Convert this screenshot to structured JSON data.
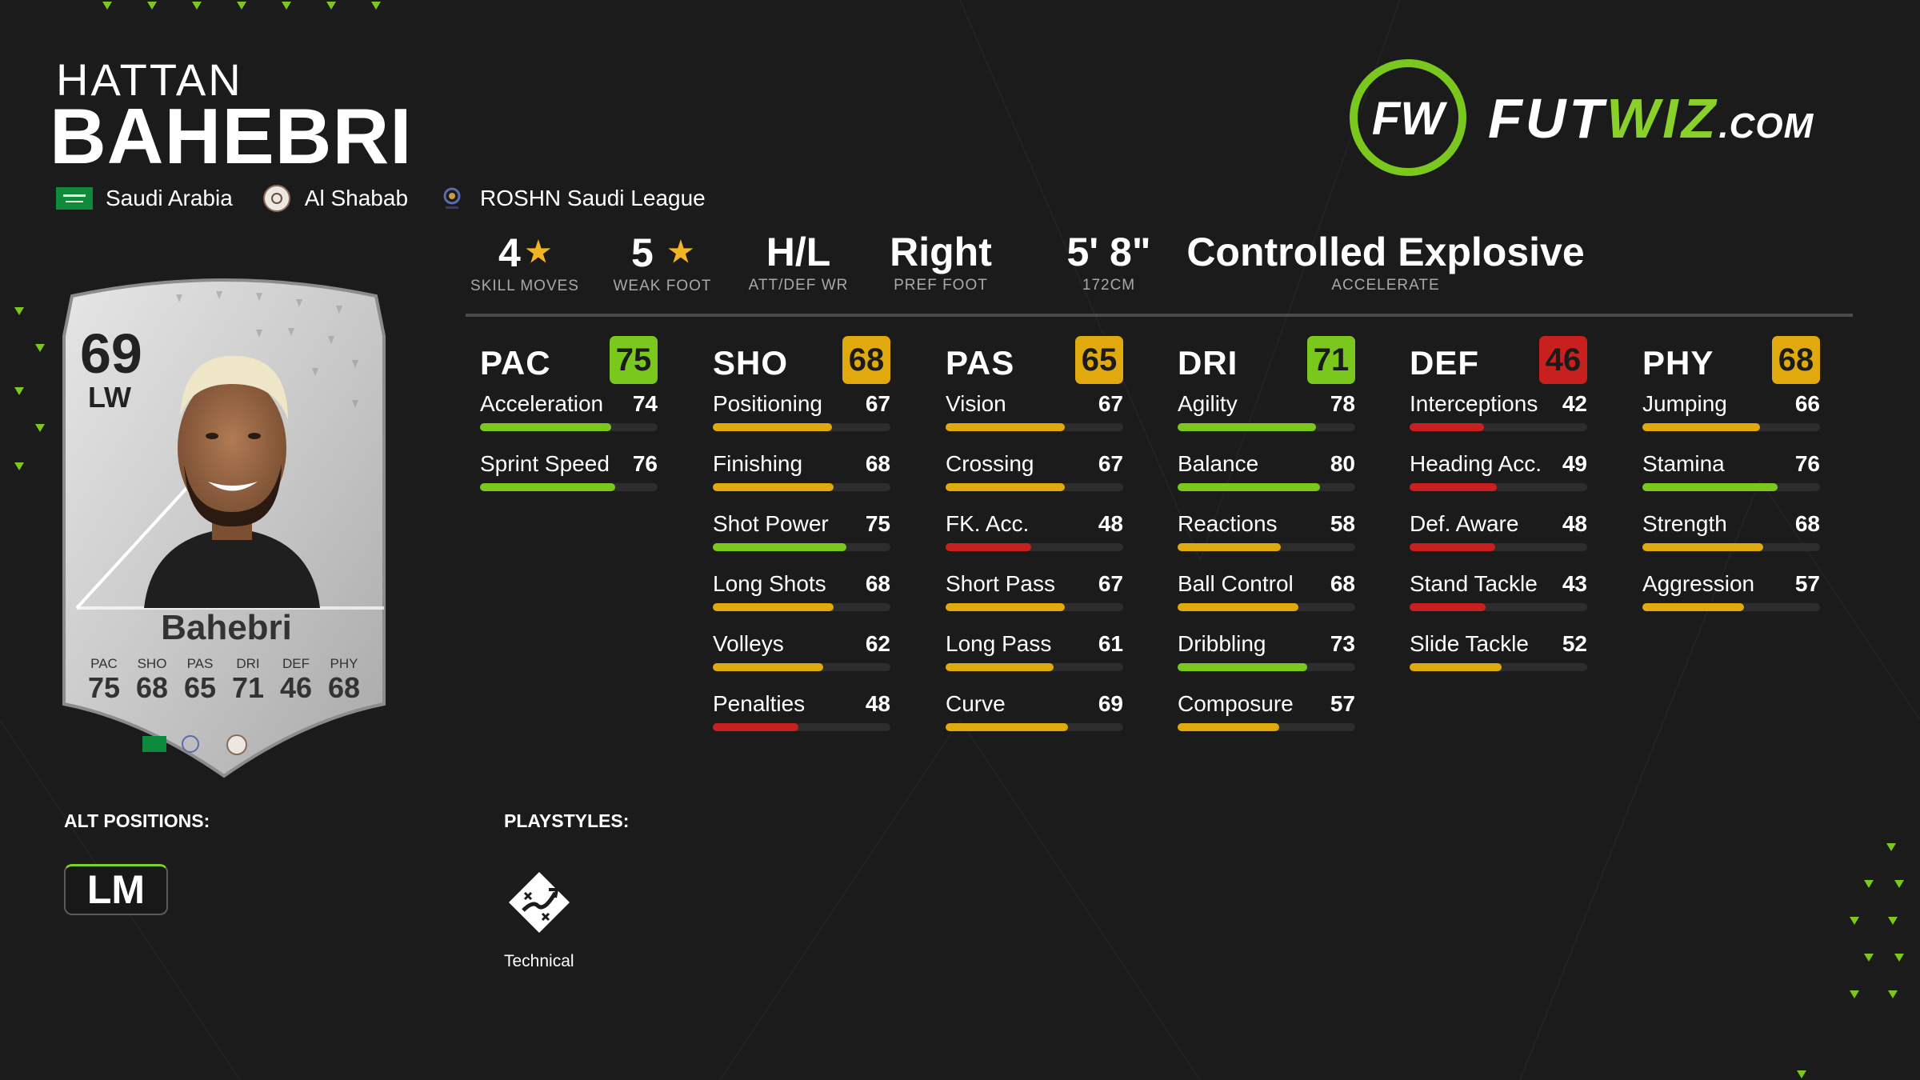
{
  "player": {
    "first_name": "HATTAN",
    "last_name": "BAHEBRI",
    "nation": "Saudi Arabia",
    "club": "Al Shabab",
    "league": "ROSHN Saudi League"
  },
  "brand": {
    "logo_mark": "FW",
    "logo_text_a": "FUT",
    "logo_text_b": "WIZ",
    "logo_text_c": ".COM",
    "accent_color": "#8ad02a"
  },
  "bio": {
    "skill_moves": {
      "value": "4",
      "label": "SKILL MOVES"
    },
    "weak_foot": {
      "value": "5",
      "label": "WEAK FOOT"
    },
    "work_rate": {
      "value": "H/L",
      "label": "ATT/DEF WR"
    },
    "pref_foot": {
      "value": "Right",
      "label": "PREF FOOT"
    },
    "height": {
      "value": "5' 8\"",
      "label": "172CM"
    },
    "accelerate": {
      "value": "Controlled Explosive",
      "label": "ACCELERATE"
    }
  },
  "card": {
    "rating": "69",
    "position": "LW",
    "name": "Bahebri",
    "stats": [
      {
        "label": "PAC",
        "value": "75"
      },
      {
        "label": "SHO",
        "value": "68"
      },
      {
        "label": "PAS",
        "value": "65"
      },
      {
        "label": "DRI",
        "value": "71"
      },
      {
        "label": "DEF",
        "value": "46"
      },
      {
        "label": "PHY",
        "value": "68"
      }
    ]
  },
  "stat_groups": [
    {
      "name": "PAC",
      "value": "75",
      "color": "#7ac81e",
      "stats": [
        {
          "name": "Acceleration",
          "value": "74"
        },
        {
          "name": "Sprint Speed",
          "value": "76"
        }
      ]
    },
    {
      "name": "SHO",
      "value": "68",
      "color": "#e0a90e",
      "stats": [
        {
          "name": "Positioning",
          "value": "67"
        },
        {
          "name": "Finishing",
          "value": "68"
        },
        {
          "name": "Shot Power",
          "value": "75"
        },
        {
          "name": "Long Shots",
          "value": "68"
        },
        {
          "name": "Volleys",
          "value": "62"
        },
        {
          "name": "Penalties",
          "value": "48"
        }
      ]
    },
    {
      "name": "PAS",
      "value": "65",
      "color": "#e0a90e",
      "stats": [
        {
          "name": "Vision",
          "value": "67"
        },
        {
          "name": "Crossing",
          "value": "67"
        },
        {
          "name": "FK. Acc.",
          "value": "48"
        },
        {
          "name": "Short Pass",
          "value": "67"
        },
        {
          "name": "Long Pass",
          "value": "61"
        },
        {
          "name": "Curve",
          "value": "69"
        }
      ]
    },
    {
      "name": "DRI",
      "value": "71",
      "color": "#7ac81e",
      "stats": [
        {
          "name": "Agility",
          "value": "78"
        },
        {
          "name": "Balance",
          "value": "80"
        },
        {
          "name": "Reactions",
          "value": "58"
        },
        {
          "name": "Ball Control",
          "value": "68"
        },
        {
          "name": "Dribbling",
          "value": "73"
        },
        {
          "name": "Composure",
          "value": "57"
        }
      ]
    },
    {
      "name": "DEF",
      "value": "46",
      "color": "#c8201e",
      "stats": [
        {
          "name": "Interceptions",
          "value": "42"
        },
        {
          "name": "Heading Acc.",
          "value": "49"
        },
        {
          "name": "Def. Aware",
          "value": "48"
        },
        {
          "name": "Stand Tackle",
          "value": "43"
        },
        {
          "name": "Slide Tackle",
          "value": "52"
        }
      ]
    },
    {
      "name": "PHY",
      "value": "68",
      "color": "#e0a90e",
      "stats": [
        {
          "name": "Jumping",
          "value": "66"
        },
        {
          "name": "Stamina",
          "value": "76"
        },
        {
          "name": "Strength",
          "value": "68"
        },
        {
          "name": "Aggression",
          "value": "57"
        }
      ]
    }
  ],
  "stat_colors": {
    "green": "#7ac81e",
    "amber": "#e0a90e",
    "red": "#c8201e"
  },
  "alt_positions": {
    "label": "ALT POSITIONS:",
    "items": [
      "LM"
    ]
  },
  "playstyles": {
    "label": "PLAYSTYLES:",
    "items": [
      {
        "name": "Technical",
        "icon": "technical-playstyle-icon"
      }
    ]
  }
}
